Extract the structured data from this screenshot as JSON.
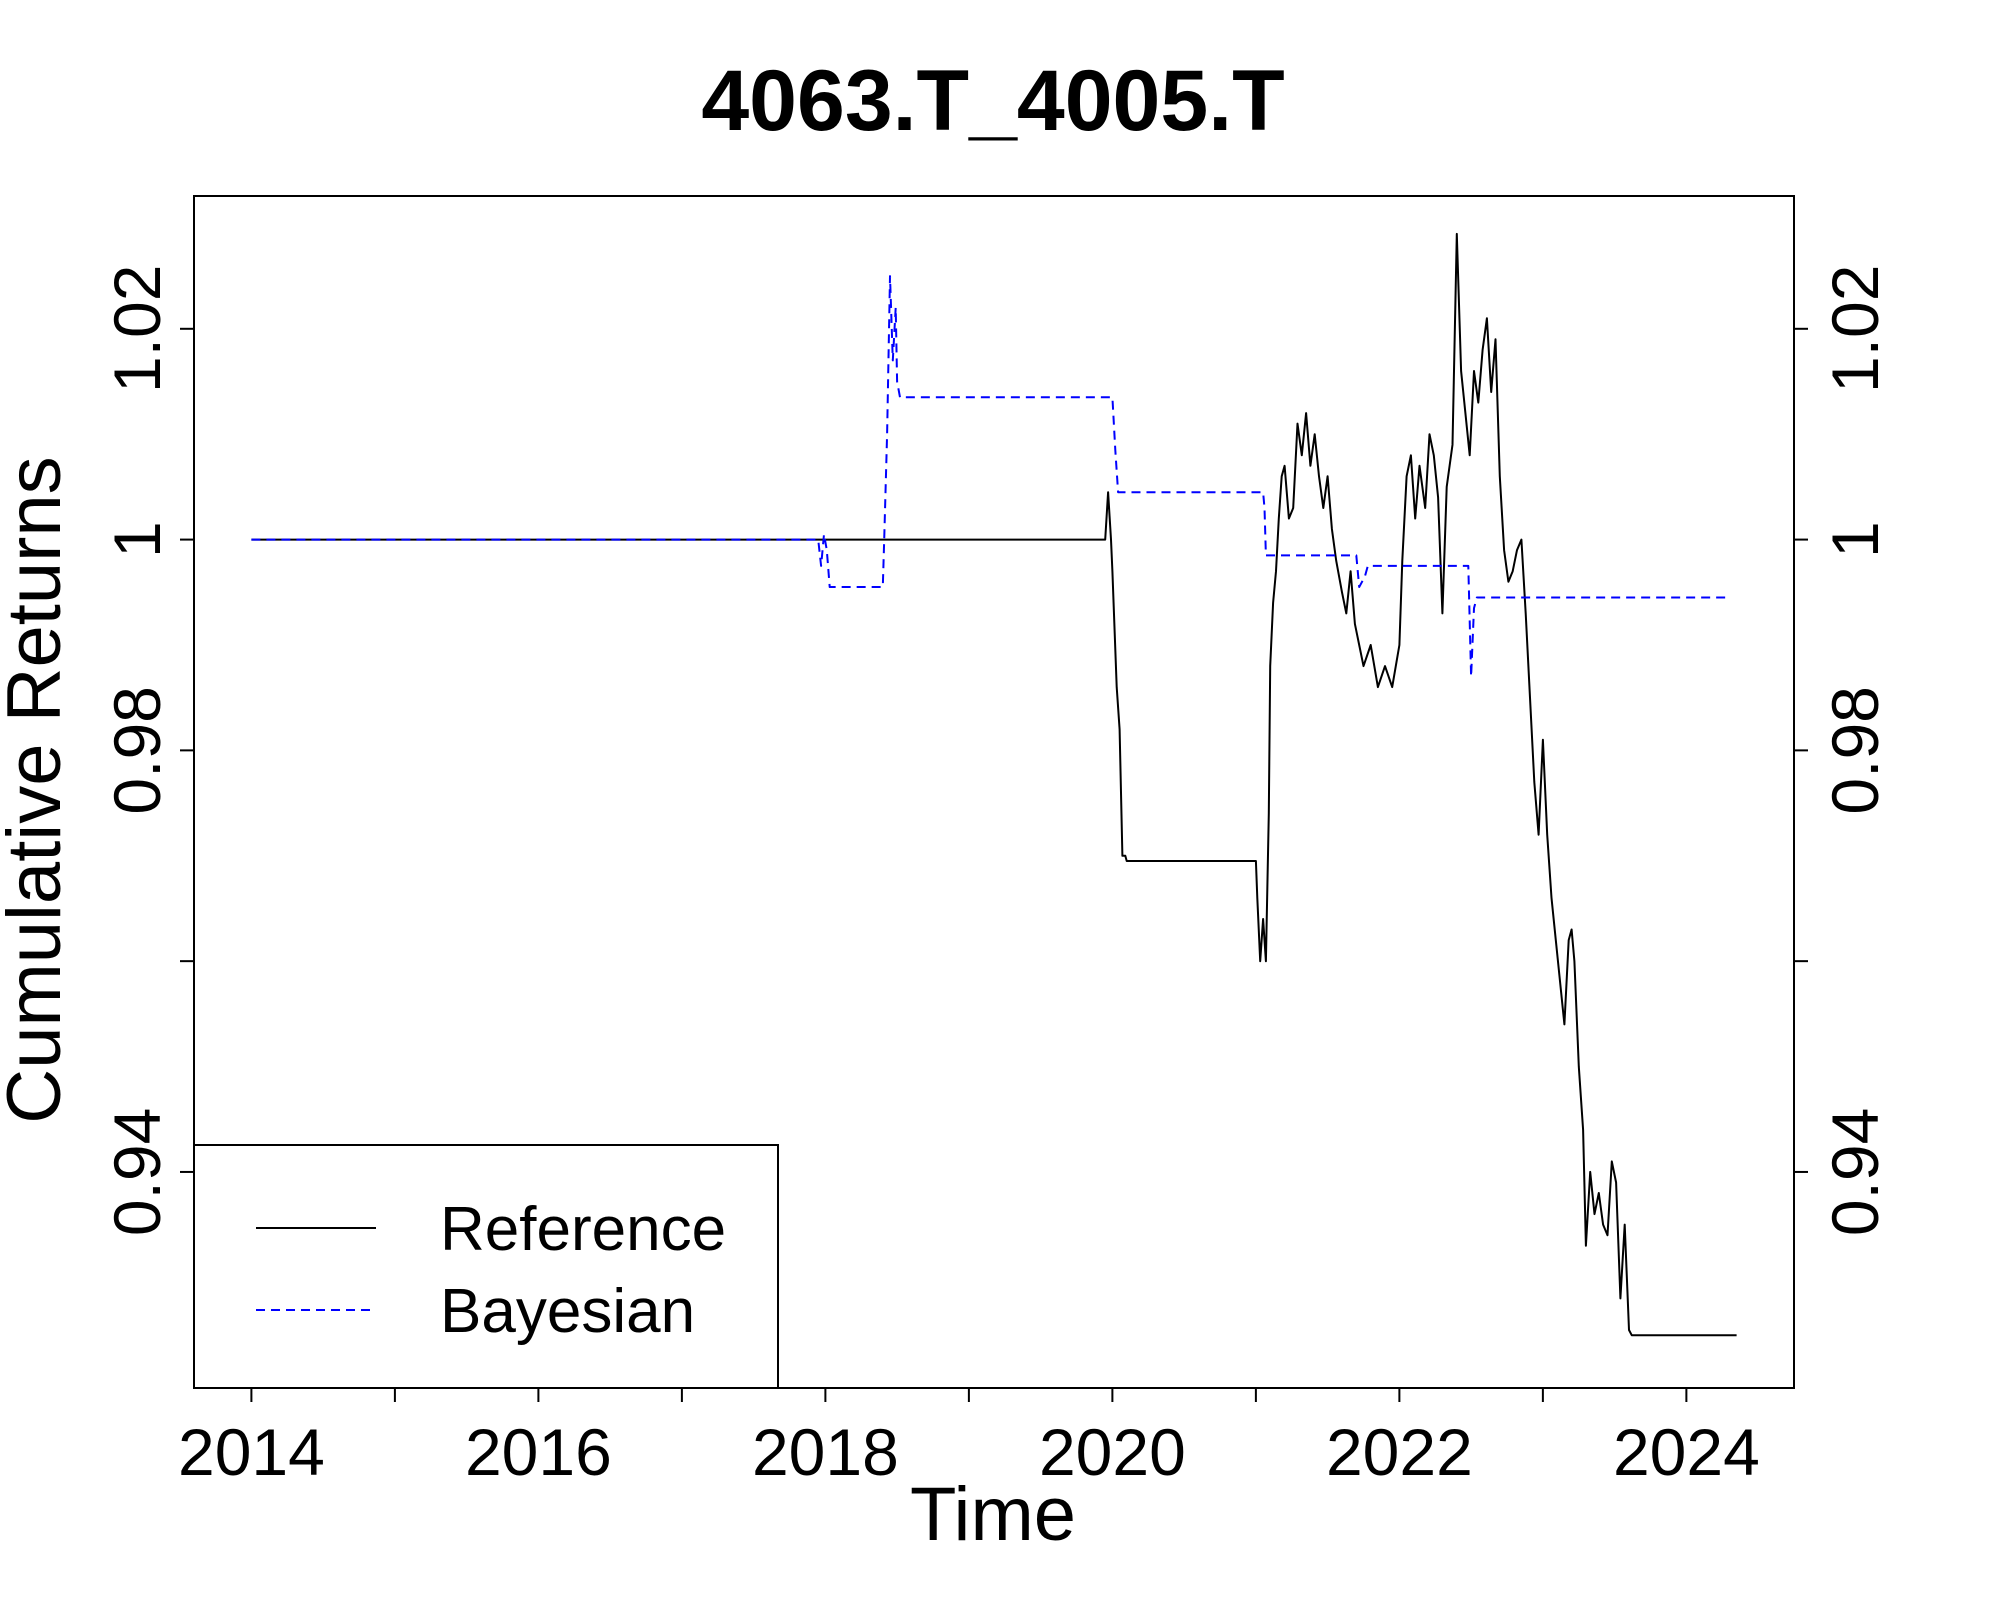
{
  "chart_data": {
    "type": "line",
    "title": "4063.T_4005.T",
    "xlabel": "Time",
    "ylabel": "Cumulative Returns",
    "xlim": [
      2013.6,
      2024.75
    ],
    "ylim": [
      0.9195,
      1.0326
    ],
    "x_ticks": [
      2014,
      2016,
      2018,
      2020,
      2022,
      2024
    ],
    "x_tick_labels": [
      "2014",
      "2016",
      "2018",
      "2020",
      "2022",
      "2024"
    ],
    "x_minor_ticks": [
      2015,
      2017,
      2019,
      2021,
      2023
    ],
    "y_ticks": [
      0.94,
      0.96,
      0.98,
      1.0,
      1.02
    ],
    "y_tick_labels": [
      "0.94",
      "",
      "0.98",
      "1",
      "1.02"
    ],
    "grid": false,
    "legend_position": "bottom-left",
    "series": [
      {
        "name": "Reference",
        "color": "#000000",
        "dash": "solid",
        "x": [
          2014.0,
          2019.95,
          2019.97,
          2019.99,
          2020.0,
          2020.03,
          2020.05,
          2020.07,
          2020.09,
          2020.1,
          2020.12,
          2021.0,
          2021.01,
          2021.03,
          2021.05,
          2021.07,
          2021.09,
          2021.1,
          2021.12,
          2021.14,
          2021.16,
          2021.18,
          2021.2,
          2021.23,
          2021.26,
          2021.29,
          2021.32,
          2021.35,
          2021.38,
          2021.41,
          2021.44,
          2021.47,
          2021.5,
          2021.53,
          2021.56,
          2021.6,
          2021.63,
          2021.66,
          2021.69,
          2021.72,
          2021.75,
          2021.8,
          2021.85,
          2021.9,
          2021.95,
          2022.0,
          2022.02,
          2022.05,
          2022.08,
          2022.11,
          2022.14,
          2022.18,
          2022.21,
          2022.24,
          2022.27,
          2022.3,
          2022.33,
          2022.37,
          2022.4,
          2022.43,
          2022.46,
          2022.49,
          2022.52,
          2022.55,
          2022.58,
          2022.61,
          2022.64,
          2022.67,
          2022.7,
          2022.73,
          2022.76,
          2022.79,
          2022.82,
          2022.85,
          2022.88,
          2022.91,
          2022.94,
          2022.97,
          2023.0,
          2023.03,
          2023.06,
          2023.09,
          2023.12,
          2023.15,
          2023.18,
          2023.2,
          2023.22,
          2023.25,
          2023.28,
          2023.3,
          2023.33,
          2023.36,
          2023.39,
          2023.42,
          2023.45,
          2023.48,
          2023.51,
          2023.54,
          2023.57,
          2023.6,
          2023.62,
          2024.35
        ],
        "y": [
          1.0,
          1.0,
          1.0045,
          1.0,
          0.997,
          0.986,
          0.982,
          0.97,
          0.97,
          0.9695,
          0.9695,
          0.9695,
          0.966,
          0.96,
          0.964,
          0.96,
          0.974,
          0.988,
          0.994,
          0.997,
          1.002,
          1.006,
          1.007,
          1.002,
          1.003,
          1.011,
          1.008,
          1.012,
          1.007,
          1.01,
          1.006,
          1.003,
          1.006,
          1.001,
          0.998,
          0.995,
          0.993,
          0.997,
          0.992,
          0.99,
          0.988,
          0.99,
          0.986,
          0.988,
          0.986,
          0.99,
          0.998,
          1.006,
          1.008,
          1.002,
          1.007,
          1.003,
          1.01,
          1.008,
          1.004,
          0.993,
          1.005,
          1.009,
          1.029,
          1.016,
          1.012,
          1.008,
          1.016,
          1.013,
          1.018,
          1.021,
          1.014,
          1.019,
          1.006,
          0.999,
          0.996,
          0.997,
          0.999,
          1.0,
          0.993,
          0.985,
          0.977,
          0.972,
          0.981,
          0.972,
          0.966,
          0.962,
          0.958,
          0.954,
          0.962,
          0.963,
          0.96,
          0.95,
          0.944,
          0.933,
          0.94,
          0.936,
          0.938,
          0.935,
          0.934,
          0.941,
          0.939,
          0.928,
          0.935,
          0.925,
          0.9245,
          0.9245
        ]
      },
      {
        "name": "Bayesian",
        "color": "#0000ff",
        "dash": "dashed",
        "x": [
          2014.0,
          2017.95,
          2017.97,
          2017.99,
          2018.01,
          2018.03,
          2018.04,
          2018.06,
          2018.4,
          2018.41,
          2018.43,
          2018.45,
          2018.47,
          2018.49,
          2018.5,
          2018.52,
          2018.54,
          2018.56,
          2018.58,
          2020.0,
          2020.02,
          2020.04,
          2020.06,
          2020.08,
          2021.05,
          2021.06,
          2021.07,
          2021.09,
          2021.11,
          2021.13,
          2021.7,
          2021.72,
          2021.74,
          2021.76,
          2021.78,
          2022.48,
          2022.5,
          2022.52,
          2022.54,
          2022.56,
          2024.3
        ],
        "y": [
          1.0,
          1.0,
          0.9975,
          1.0005,
          0.999,
          0.9955,
          0.9955,
          0.9955,
          0.9955,
          1.0,
          1.01,
          1.025,
          1.017,
          1.022,
          1.015,
          1.0135,
          1.0135,
          1.0135,
          1.0135,
          1.0135,
          1.0085,
          1.0045,
          1.0045,
          1.0045,
          1.0045,
          1.003,
          0.9985,
          0.9985,
          0.9985,
          0.9985,
          0.9985,
          0.9955,
          0.996,
          0.9965,
          0.9975,
          0.9975,
          0.987,
          0.9935,
          0.9945,
          0.9945,
          0.9945
        ]
      }
    ]
  }
}
